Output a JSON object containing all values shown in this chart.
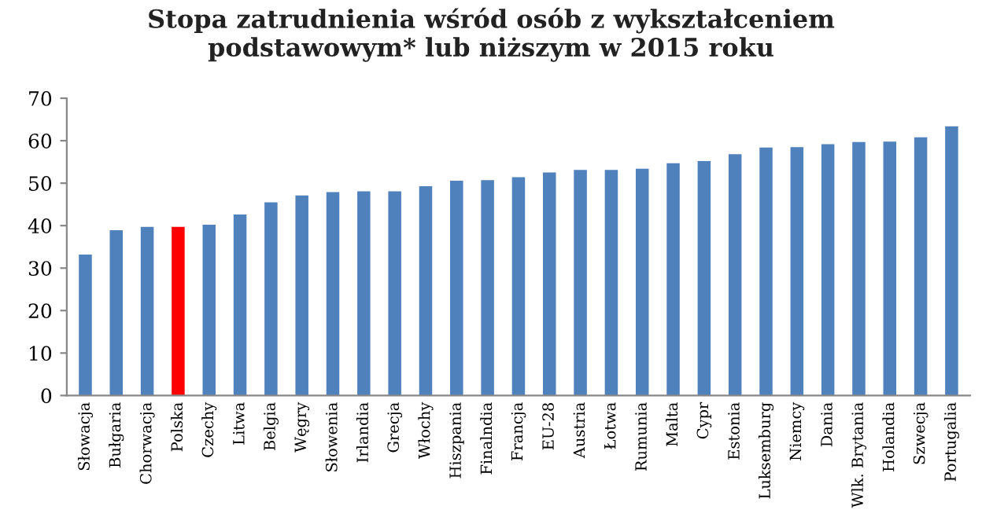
{
  "chart_data": {
    "type": "bar",
    "title": "Stopa zatrudnienia wśród osób z wykształceniem\npodstawowym* lub niższym w 2015 roku",
    "categories": [
      "Słowacja",
      "Bułgaria",
      "Chorwacja",
      "Polska",
      "Czechy",
      "Litwa",
      "Belgia",
      "Węgry",
      "Słowenia",
      "Irlandia",
      "Grecja",
      "Włochy",
      "Hiszpania",
      "Finalndia",
      "Francja",
      "EU-28",
      "Austria",
      "Łotwa",
      "Rumunia",
      "Malta",
      "Cypr",
      "Estonia",
      "Luksemburg",
      "Niemcy",
      "Dania",
      "Wlk. Brytania",
      "Holandia",
      "Szwecja",
      "Portugalia"
    ],
    "values": [
      33.2,
      38.9,
      39.7,
      39.7,
      40.2,
      42.6,
      45.5,
      47.1,
      47.9,
      48.1,
      48.1,
      49.3,
      50.6,
      50.7,
      51.4,
      52.5,
      53.1,
      53.1,
      53.4,
      54.7,
      55.2,
      56.8,
      58.4,
      58.5,
      59.2,
      59.7,
      59.8,
      60.8,
      63.4
    ],
    "colors": [
      "#4f81bd",
      "#4f81bd",
      "#4f81bd",
      "#ff0000",
      "#4f81bd",
      "#4f81bd",
      "#4f81bd",
      "#4f81bd",
      "#4f81bd",
      "#4f81bd",
      "#4f81bd",
      "#4f81bd",
      "#4f81bd",
      "#4f81bd",
      "#4f81bd",
      "#4f81bd",
      "#4f81bd",
      "#4f81bd",
      "#4f81bd",
      "#4f81bd",
      "#4f81bd",
      "#4f81bd",
      "#4f81bd",
      "#4f81bd",
      "#4f81bd",
      "#4f81bd",
      "#4f81bd",
      "#4f81bd",
      "#4f81bd"
    ],
    "ylim": [
      0,
      70
    ],
    "yticks": [
      0,
      10,
      20,
      30,
      40,
      50,
      60,
      70
    ],
    "grid": false,
    "legend": false
  }
}
